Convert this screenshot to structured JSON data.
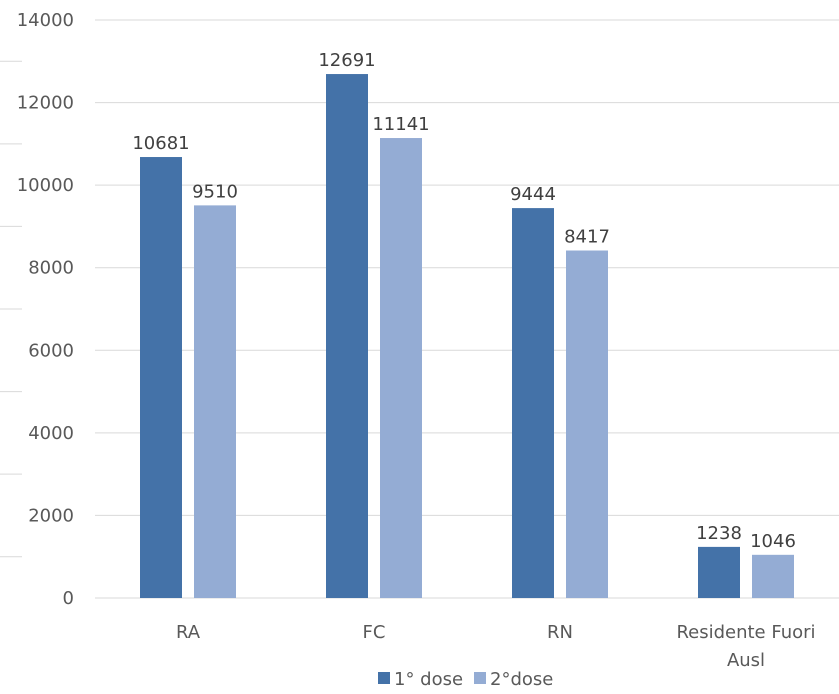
{
  "chart_data": {
    "type": "bar",
    "categories": [
      "RA",
      "FC",
      "RN",
      "Residente Fuori Ausl"
    ],
    "series": [
      {
        "name": "1° dose",
        "values": [
          10681,
          12691,
          9444,
          1238
        ],
        "color": "#4472a8"
      },
      {
        "name": "2°dose",
        "values": [
          9510,
          11141,
          8417,
          1046
        ],
        "color": "#94acd4"
      }
    ],
    "ylim": [
      0,
      14000
    ],
    "yticks": [
      0,
      2000,
      4000,
      6000,
      8000,
      10000,
      12000,
      14000
    ],
    "grid": true,
    "legend": "bottom",
    "data_labels": true,
    "gridline_color": "#d9d9d9"
  }
}
